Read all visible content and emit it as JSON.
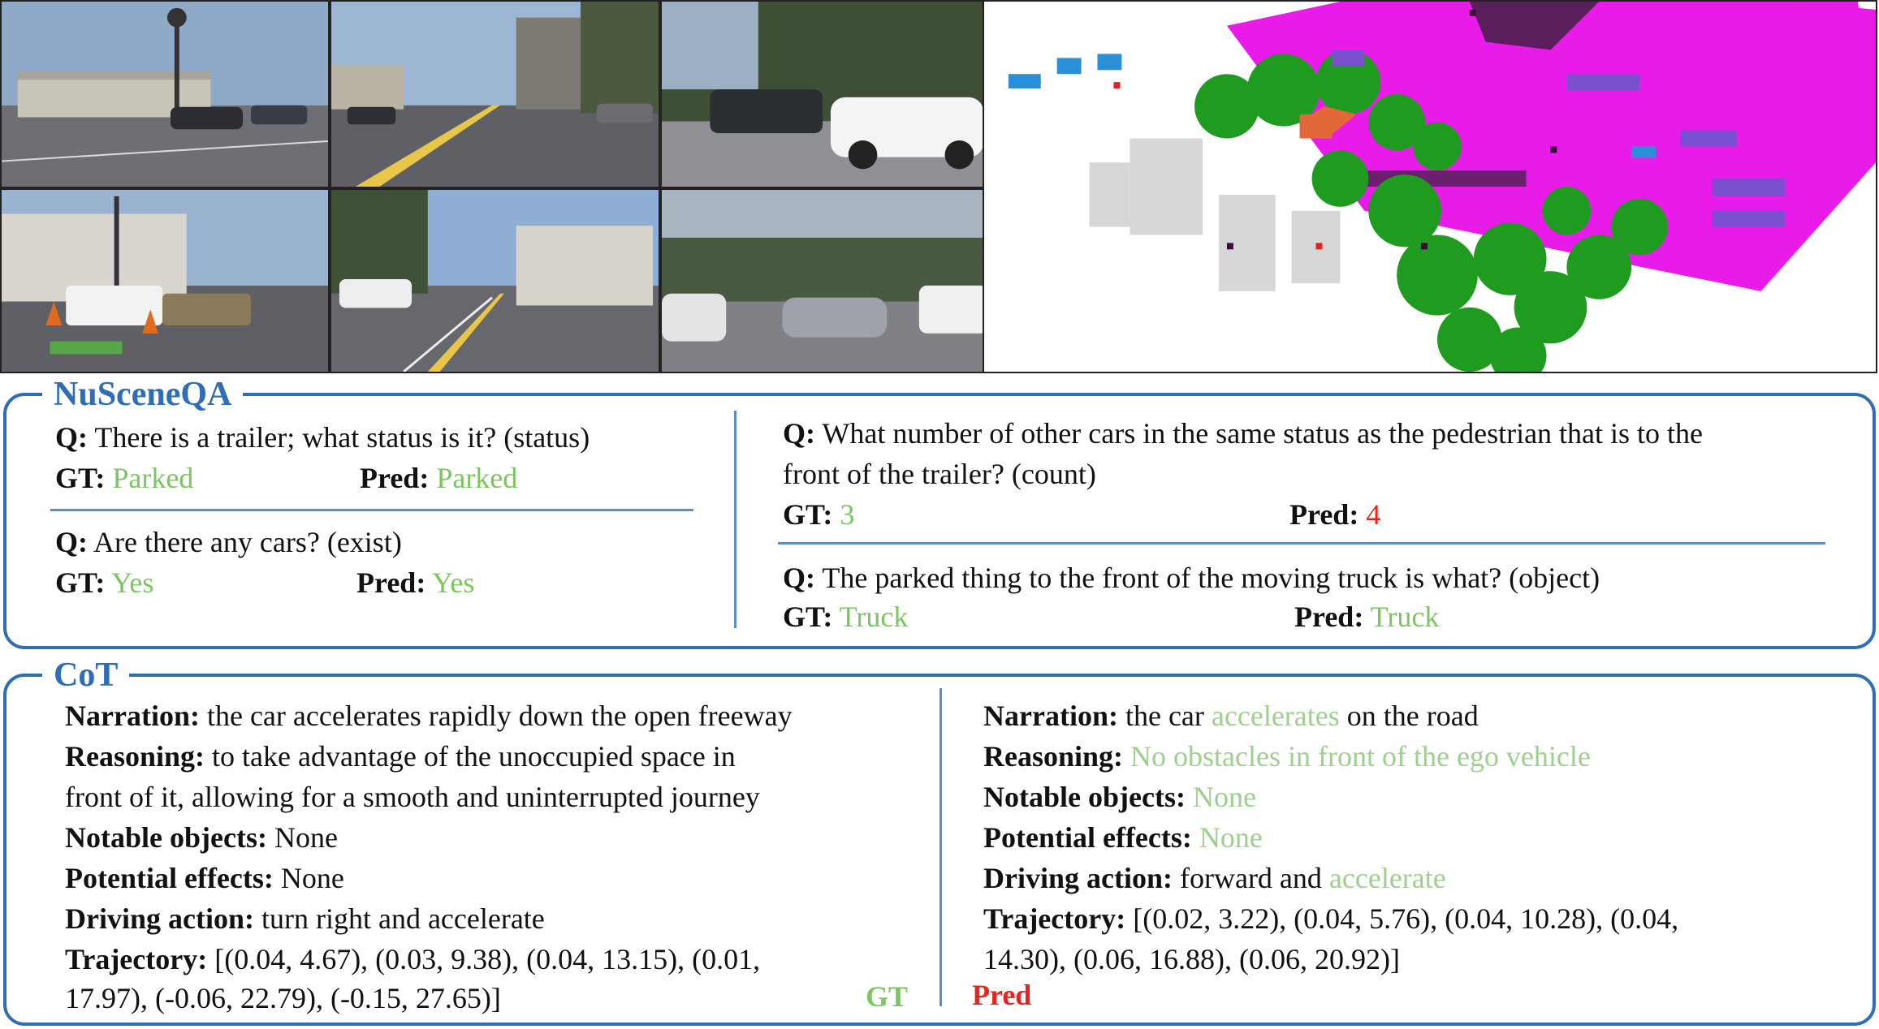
{
  "nuscenes_panel": {
    "title": "NuSceneQA",
    "q1": {
      "q_label": "Q:",
      "question": "There is a trailer; what status is it? (status)",
      "gt_label": "GT:",
      "gt": "Parked",
      "pred_label": "Pred:",
      "pred": "Parked"
    },
    "q2": {
      "q_label": "Q:",
      "question": "Are there any cars? (exist)",
      "gt_label": "GT:",
      "gt": "Yes",
      "pred_label": "Pred:",
      "pred": "Yes"
    },
    "q3": {
      "q_label": "Q:",
      "question_line1": "What number of other cars in the same status as the pedestrian that is to the",
      "question_line2": "front of the trailer? (count)",
      "gt_label": "GT:",
      "gt": "3",
      "pred_label": "Pred:",
      "pred": "4"
    },
    "q4": {
      "q_label": "Q:",
      "question": "The parked thing to the front of the moving truck is what? (object)",
      "gt_label": "GT:",
      "gt": "Truck",
      "pred_label": "Pred:",
      "pred": "Truck"
    }
  },
  "cot_panel": {
    "title": "CoT",
    "gt": {
      "corner_label": "GT",
      "narration_label": "Narration:",
      "narration": "the car accelerates rapidly down the open freeway",
      "reasoning_label": "Reasoning:",
      "reasoning_line1": "to take advantage of the unoccupied space in",
      "reasoning_line2": "front of it, allowing for a smooth and uninterrupted journey",
      "notable_label": "Notable objects:",
      "notable": "None",
      "effects_label": "Potential effects:",
      "effects": "None",
      "action_label": "Driving action:",
      "action": "turn right and accelerate",
      "trajectory_label": "Trajectory:",
      "trajectory_line1": "[(0.04, 4.67), (0.03, 9.38), (0.04, 13.15), (0.01,",
      "trajectory_line2": "17.97), (-0.06, 22.79), (-0.15, 27.65)]"
    },
    "pred": {
      "corner_label": "Pred",
      "narration_label": "Narration:",
      "narration_pre": "the car",
      "narration_hl": "accelerates",
      "narration_post": "on the road",
      "reasoning_label": "Reasoning:",
      "reasoning": "No obstacles in front of the ego vehicle",
      "notable_label": "Notable objects:",
      "notable": "None",
      "effects_label": "Potential effects:",
      "effects": "None",
      "action_label": "Driving action:",
      "action_pre": "forward and",
      "action_hl": "accelerate",
      "trajectory_label": "Trajectory:",
      "trajectory_line1": "[(0.02, 3.22), (0.04, 5.76), (0.04, 10.28), (0.04,",
      "trajectory_line2": "14.30), (0.06, 16.88), (0.06, 20.92)]"
    }
  },
  "colors": {
    "accent": "#2f6db5",
    "correct": "#7cc560",
    "wrong": "#e8231f",
    "highlight": "#9fcf8f"
  }
}
